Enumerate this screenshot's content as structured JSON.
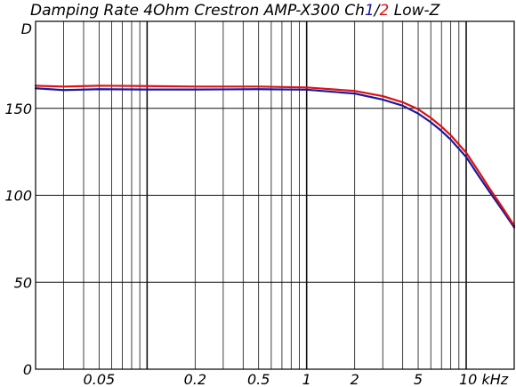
{
  "chart_data": {
    "type": "line",
    "title_parts": [
      {
        "text": "Damping Rate 4Ohm Crestron AMP-X300 Ch",
        "color": "#000000"
      },
      {
        "text": "1",
        "color": "#1a1aa0"
      },
      {
        "text": "/",
        "color": "#000000"
      },
      {
        "text": "2",
        "color": "#dd1111"
      },
      {
        "text": " Low-Z",
        "color": "#000000"
      }
    ],
    "ylabel": "D",
    "xscale": "log",
    "xlim": [
      0.02,
      20
    ],
    "ylim": [
      0,
      200
    ],
    "x_tick_labels": [
      {
        "value": 0.05,
        "label": "0.05"
      },
      {
        "value": 0.2,
        "label": "0.2"
      },
      {
        "value": 0.5,
        "label": "0.5"
      },
      {
        "value": 1,
        "label": "1"
      },
      {
        "value": 2,
        "label": "2"
      },
      {
        "value": 5,
        "label": "5"
      },
      {
        "value": 10,
        "label": "10 kHz"
      }
    ],
    "y_ticks": [
      {
        "value": 0,
        "label": "0"
      },
      {
        "value": 50,
        "label": "50"
      },
      {
        "value": 100,
        "label": "100"
      },
      {
        "value": 150,
        "label": "150"
      }
    ],
    "grid": true,
    "x_minor_gridlines": [
      0.03,
      0.04,
      0.06,
      0.07,
      0.08,
      0.09,
      0.3,
      0.4,
      0.6,
      0.7,
      0.8,
      0.9,
      3,
      4,
      6,
      7,
      8,
      9
    ],
    "x_major_gridlines": [
      0.1,
      1,
      10
    ],
    "series": [
      {
        "id": "ch1",
        "color": "#1a1aa0",
        "x": [
          0.02,
          0.03,
          0.05,
          0.1,
          0.2,
          0.5,
          1,
          2,
          3,
          4,
          5,
          6,
          7,
          8,
          10,
          12,
          14,
          17,
          20
        ],
        "y": [
          161.5,
          160.5,
          161,
          160.8,
          160.8,
          161,
          160.7,
          158.5,
          155,
          151.5,
          147,
          142,
          137,
          132,
          122,
          111,
          102,
          91,
          81.5
        ]
      },
      {
        "id": "ch2",
        "color": "#dd1111",
        "x": [
          0.02,
          0.03,
          0.05,
          0.1,
          0.2,
          0.5,
          1,
          2,
          3,
          4,
          5,
          6,
          7,
          8,
          10,
          12,
          14,
          17,
          20
        ],
        "y": [
          163,
          162.5,
          163,
          162.8,
          162.5,
          162.5,
          162,
          160,
          157,
          153.5,
          149.5,
          144.5,
          139.5,
          134.5,
          124.5,
          113.5,
          104,
          92.5,
          82.5
        ]
      }
    ]
  }
}
